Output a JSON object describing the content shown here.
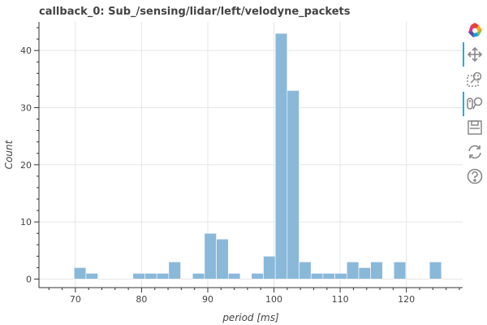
{
  "chart_data": {
    "type": "bar",
    "title": "callback_0: Sub_/sensing/lidar/left/velodyne_packets",
    "xlabel": "period [ms]",
    "ylabel": "Count",
    "xlim": [
      64.5,
      128.5
    ],
    "ylim": [
      -1.5,
      45
    ],
    "x_ticks": [
      70,
      80,
      90,
      100,
      110,
      120
    ],
    "y_ticks": [
      0,
      10,
      20,
      30,
      40
    ],
    "bin_width": 1.8,
    "bar_color": "#8ab8d9",
    "grid": true,
    "legend": "none",
    "bins": [
      {
        "x": 70.7,
        "count": 2
      },
      {
        "x": 72.5,
        "count": 1
      },
      {
        "x": 79.6,
        "count": 1
      },
      {
        "x": 81.4,
        "count": 1
      },
      {
        "x": 83.2,
        "count": 1
      },
      {
        "x": 85.0,
        "count": 3
      },
      {
        "x": 88.6,
        "count": 1
      },
      {
        "x": 90.4,
        "count": 8
      },
      {
        "x": 92.2,
        "count": 7
      },
      {
        "x": 94.0,
        "count": 1
      },
      {
        "x": 97.5,
        "count": 1
      },
      {
        "x": 99.3,
        "count": 4
      },
      {
        "x": 101.1,
        "count": 43
      },
      {
        "x": 102.9,
        "count": 33
      },
      {
        "x": 104.7,
        "count": 3
      },
      {
        "x": 106.5,
        "count": 1
      },
      {
        "x": 108.3,
        "count": 1
      },
      {
        "x": 110.1,
        "count": 1
      },
      {
        "x": 111.9,
        "count": 3
      },
      {
        "x": 113.7,
        "count": 2
      },
      {
        "x": 115.5,
        "count": 3
      },
      {
        "x": 119.0,
        "count": 3
      },
      {
        "x": 124.4,
        "count": 3
      }
    ]
  },
  "toolbar": {
    "tools": [
      {
        "name": "bokeh-logo",
        "icon": "bokeh-logo-icon"
      },
      {
        "name": "pan",
        "icon": "pan-icon",
        "active": true
      },
      {
        "name": "box-zoom",
        "icon": "box-zoom-icon"
      },
      {
        "name": "wheel-zoom",
        "icon": "wheel-zoom-icon",
        "active": true
      },
      {
        "name": "save",
        "icon": "save-icon"
      },
      {
        "name": "reset",
        "icon": "reset-icon"
      },
      {
        "name": "help",
        "icon": "help-icon"
      }
    ],
    "active_color": "#26aae1"
  }
}
